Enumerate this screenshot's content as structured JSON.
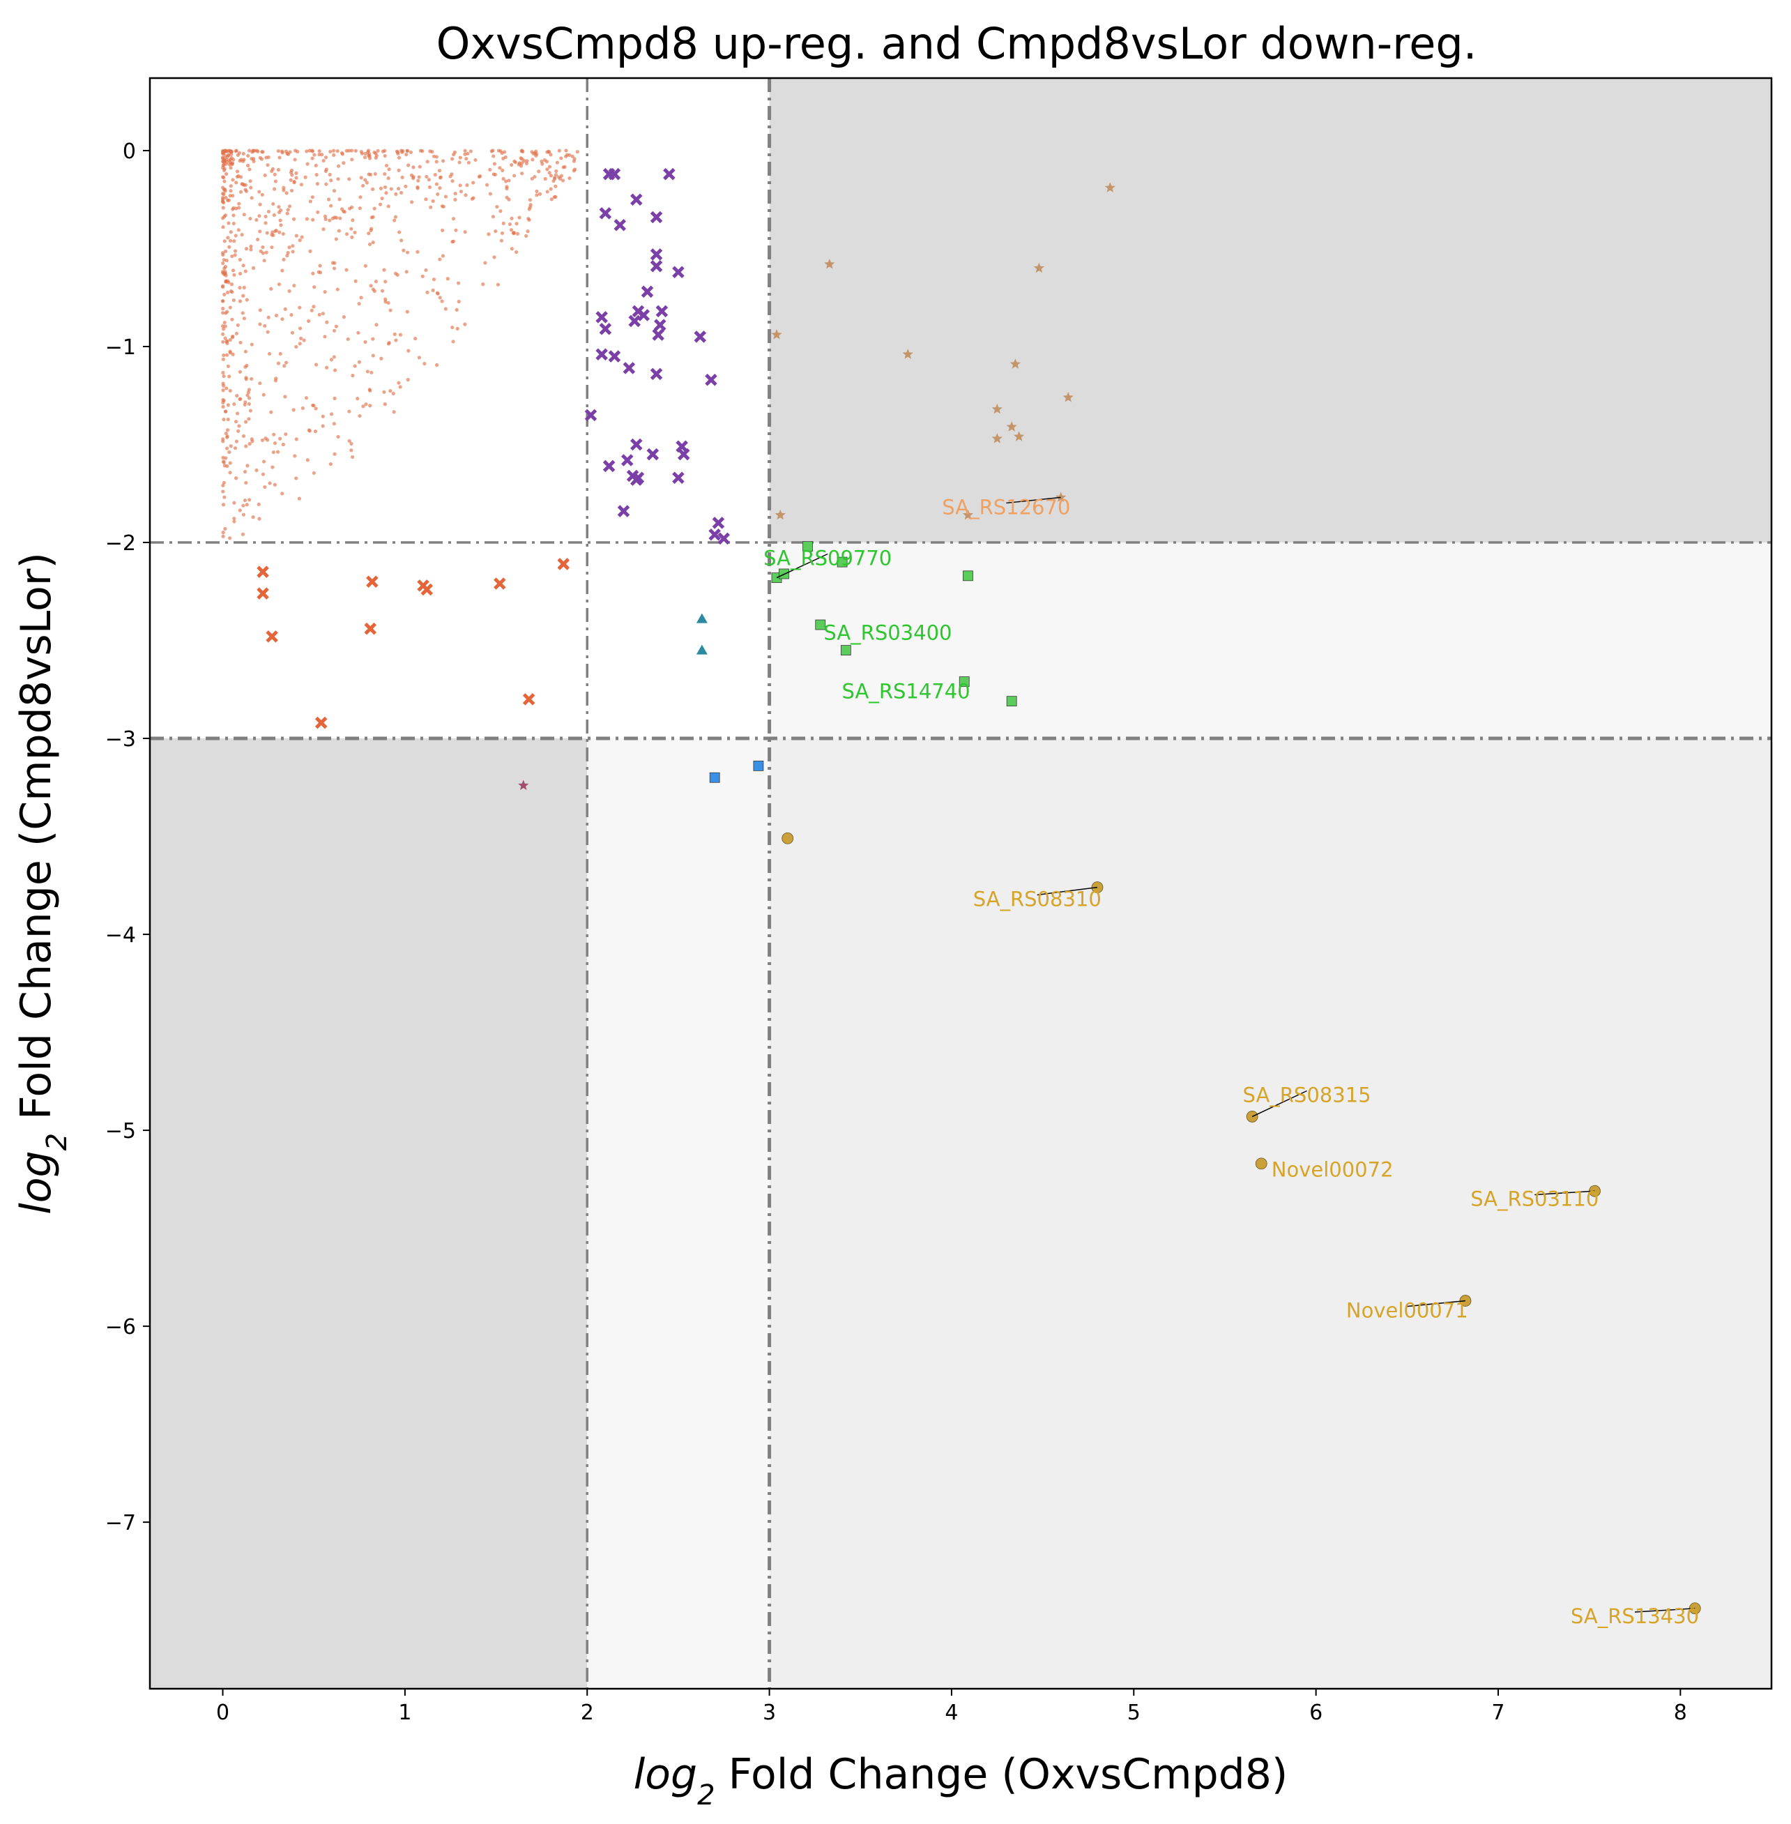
{
  "chart_data": {
    "type": "scatter",
    "title": "OxvsCmpd8 up-reg. and Cmpd8vsLor down-reg.",
    "xlabel_italic": "log",
    "xlabel_sub": "2",
    "xlabel_rest": " Fold Change (OxvsCmpd8)",
    "ylabel_italic": "log",
    "ylabel_sub": "2",
    "ylabel_rest": " Fold Change (Cmpd8vsLor)",
    "xlim": [
      -0.4,
      8.5
    ],
    "ylim": [
      -7.85,
      0.37
    ],
    "xticks": [
      0,
      1,
      2,
      3,
      4,
      5,
      6,
      7,
      8
    ],
    "yticks": [
      0,
      -1,
      -2,
      -3,
      -4,
      -5,
      -6,
      -7
    ],
    "xtick_labels": [
      "0",
      "1",
      "2",
      "3",
      "4",
      "5",
      "6",
      "7",
      "8"
    ],
    "ytick_labels": [
      "0",
      "−1",
      "−2",
      "−3",
      "−4",
      "−5",
      "−6",
      "−7"
    ],
    "grid": false,
    "threshold_lines": {
      "x": [
        2,
        3
      ],
      "y": [
        -2,
        -3
      ]
    },
    "shaded_regions": [
      {
        "x": [
          3,
          8.5
        ],
        "y": [
          -2,
          0.37
        ],
        "color": "#dcdcdc"
      },
      {
        "x": [
          -0.4,
          2
        ],
        "y": [
          -7.85,
          -3
        ],
        "color": "#dcdcdc"
      },
      {
        "x": [
          3,
          8.5
        ],
        "y": [
          -3,
          -2
        ],
        "color": "#f7f7f7"
      },
      {
        "x": [
          2,
          3
        ],
        "y": [
          -7.85,
          -3
        ],
        "color": "#f7f7f7"
      },
      {
        "x": [
          3,
          8.5
        ],
        "y": [
          -7.85,
          -3
        ],
        "color": "#efefef"
      }
    ],
    "series": [
      {
        "marker": "x",
        "color": "#e5653a",
        "points": [
          [
            0.22,
            -2.15
          ],
          [
            0.22,
            -2.26
          ],
          [
            0.27,
            -2.48
          ],
          [
            0.54,
            -2.92
          ],
          [
            0.82,
            -2.2
          ],
          [
            0.81,
            -2.44
          ],
          [
            1.1,
            -2.22
          ],
          [
            1.12,
            -2.24
          ],
          [
            1.52,
            -2.21
          ],
          [
            1.68,
            -2.8
          ],
          [
            1.87,
            -2.11
          ]
        ]
      },
      {
        "marker": "x",
        "color": "#7b3fa8",
        "points": [
          [
            2.12,
            -0.12
          ],
          [
            2.15,
            -0.12
          ],
          [
            2.45,
            -0.12
          ],
          [
            2.18,
            -0.38
          ],
          [
            2.1,
            -0.32
          ],
          [
            2.27,
            -0.25
          ],
          [
            2.38,
            -0.34
          ],
          [
            2.38,
            -0.53
          ],
          [
            2.38,
            -0.59
          ],
          [
            2.33,
            -0.72
          ],
          [
            2.28,
            -0.82
          ],
          [
            2.31,
            -0.84
          ],
          [
            2.26,
            -0.87
          ],
          [
            2.41,
            -0.82
          ],
          [
            2.4,
            -0.89
          ],
          [
            2.39,
            -0.94
          ],
          [
            2.5,
            -0.62
          ],
          [
            2.08,
            -0.85
          ],
          [
            2.1,
            -0.91
          ],
          [
            2.08,
            -1.04
          ],
          [
            2.15,
            -1.05
          ],
          [
            2.23,
            -1.11
          ],
          [
            2.38,
            -1.14
          ],
          [
            2.62,
            -0.95
          ],
          [
            2.68,
            -1.17
          ],
          [
            2.02,
            -1.35
          ],
          [
            2.12,
            -1.61
          ],
          [
            2.27,
            -1.5
          ],
          [
            2.22,
            -1.58
          ],
          [
            2.25,
            -1.66
          ],
          [
            2.28,
            -1.67
          ],
          [
            2.27,
            -1.68
          ],
          [
            2.36,
            -1.55
          ],
          [
            2.52,
            -1.51
          ],
          [
            2.53,
            -1.55
          ],
          [
            2.5,
            -1.67
          ],
          [
            2.2,
            -1.84
          ],
          [
            2.7,
            -1.96
          ],
          [
            2.72,
            -1.9
          ],
          [
            2.75,
            -1.98
          ]
        ]
      },
      {
        "marker": "star",
        "color": "#c4956a",
        "points": [
          [
            4.87,
            -0.19
          ],
          [
            3.33,
            -0.58
          ],
          [
            4.48,
            -0.6
          ],
          [
            3.04,
            -0.94
          ],
          [
            3.76,
            -1.04
          ],
          [
            4.35,
            -1.09
          ],
          [
            4.64,
            -1.26
          ],
          [
            4.25,
            -1.32
          ],
          [
            4.33,
            -1.41
          ],
          [
            4.25,
            -1.47
          ],
          [
            4.37,
            -1.46
          ],
          [
            3.06,
            -1.86
          ],
          [
            4.09,
            -1.86
          ],
          [
            4.6,
            -1.77
          ]
        ]
      },
      {
        "marker": "star",
        "color": "#a04d6e",
        "points": [
          [
            1.65,
            -3.24
          ]
        ]
      },
      {
        "marker": "square",
        "color": "#5ccc5c",
        "points": [
          [
            3.21,
            -2.02
          ],
          [
            3.04,
            -2.18
          ],
          [
            3.08,
            -2.16
          ],
          [
            3.4,
            -2.1
          ],
          [
            4.09,
            -2.17
          ],
          [
            3.28,
            -2.42
          ],
          [
            3.42,
            -2.55
          ],
          [
            4.07,
            -2.71
          ],
          [
            4.33,
            -2.81
          ]
        ]
      },
      {
        "marker": "triangle",
        "color": "#2c8aa0",
        "points": [
          [
            2.63,
            -2.39
          ],
          [
            2.63,
            -2.55
          ]
        ]
      },
      {
        "marker": "square",
        "color": "#3a8fe6",
        "points": [
          [
            2.7,
            -3.2
          ],
          [
            2.94,
            -3.14
          ]
        ]
      },
      {
        "marker": "circle",
        "color": "#c9a03a",
        "points": [
          [
            3.1,
            -3.51
          ],
          [
            4.8,
            -3.76
          ],
          [
            5.65,
            -4.93
          ],
          [
            5.7,
            -5.17
          ],
          [
            7.53,
            -5.31
          ],
          [
            6.82,
            -5.87
          ],
          [
            8.08,
            -7.44
          ]
        ]
      }
    ],
    "annotations": [
      {
        "text": "SA_RS12670",
        "x": 4.3,
        "y": -1.82,
        "color": "#f0a060",
        "anchor_x": 4.6,
        "anchor_y": -1.77
      },
      {
        "text": "SA_RS09770",
        "x": 3.32,
        "y": -2.08,
        "color": "#2ec62e",
        "anchor_x": 3.04,
        "anchor_y": -2.18
      },
      {
        "text": "SA_RS03400",
        "x": 3.65,
        "y": -2.46,
        "color": "#2ec62e"
      },
      {
        "text": "SA_RS14740",
        "x": 3.75,
        "y": -2.76,
        "color": "#2ec62e"
      },
      {
        "text": "SA_RS08310",
        "x": 4.47,
        "y": -3.82,
        "color": "#d7a42a",
        "anchor_x": 4.8,
        "anchor_y": -3.76
      },
      {
        "text": "SA_RS08315",
        "x": 5.95,
        "y": -4.82,
        "color": "#d7a42a",
        "anchor_x": 5.65,
        "anchor_y": -4.93
      },
      {
        "text": "Novel00072",
        "x": 6.09,
        "y": -5.2,
        "color": "#d7a42a"
      },
      {
        "text": "SA_RS03110",
        "x": 7.2,
        "y": -5.35,
        "color": "#d7a42a",
        "anchor_x": 7.53,
        "anchor_y": -5.31
      },
      {
        "text": "Novel00071",
        "x": 6.5,
        "y": -5.92,
        "color": "#d7a42a",
        "anchor_x": 6.82,
        "anchor_y": -5.87
      },
      {
        "text": "SA_RS13430",
        "x": 7.75,
        "y": -7.48,
        "color": "#d7a42a",
        "anchor_x": 8.08,
        "anchor_y": -7.44
      }
    ],
    "background_cloud": {
      "marker": "dot",
      "color": "#e0714a",
      "approximate_count": 900,
      "x_range": [
        0,
        1.95
      ],
      "y_range": [
        -2.0,
        0
      ],
      "note_visible": false
    }
  }
}
